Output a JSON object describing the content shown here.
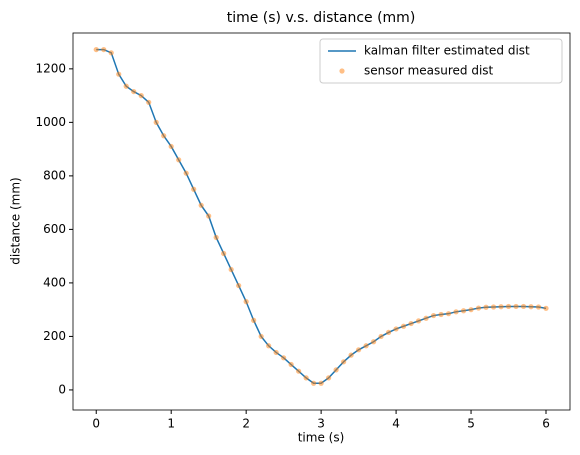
{
  "chart_data": {
    "type": "line_scatter",
    "title": "time (s) v.s. distance (mm)",
    "x_label": "time (s)",
    "y_label": "distance (mm)",
    "x": [
      0,
      0.1,
      0.2,
      0.3,
      0.4,
      0.5,
      0.6,
      0.7,
      0.8,
      0.9,
      1.0,
      1.1,
      1.2,
      1.3,
      1.4,
      1.5,
      1.6,
      1.7,
      1.8,
      1.9,
      2.0,
      2.1,
      2.2,
      2.3,
      2.4,
      2.5,
      2.6,
      2.7,
      2.8,
      2.9,
      3.0,
      3.1,
      3.2,
      3.3,
      3.4,
      3.5,
      3.6,
      3.7,
      3.8,
      3.9,
      4.0,
      4.1,
      4.2,
      4.3,
      4.4,
      4.5,
      4.6,
      4.7,
      4.8,
      4.9,
      5.0,
      5.1,
      5.2,
      5.3,
      5.4,
      5.5,
      5.6,
      5.7,
      5.8,
      5.9,
      6.0
    ],
    "series": [
      {
        "name": "kalman filter estimated dist",
        "color": "#1f77b4",
        "style": "line",
        "values": [
          1272,
          1272,
          1260,
          1180,
          1135,
          1115,
          1100,
          1075,
          1000,
          950,
          910,
          860,
          810,
          750,
          690,
          650,
          570,
          510,
          450,
          390,
          330,
          260,
          200,
          165,
          140,
          120,
          95,
          70,
          45,
          25,
          25,
          45,
          75,
          105,
          130,
          150,
          165,
          180,
          200,
          215,
          228,
          238,
          248,
          258,
          268,
          278,
          282,
          285,
          292,
          296,
          300,
          306,
          309,
          310,
          311,
          312,
          312,
          312,
          311,
          310,
          305
        ]
      },
      {
        "name": "sensor measured dist",
        "color": "#ff7f0e",
        "style": "scatter",
        "values": [
          1272,
          1272,
          1260,
          1180,
          1135,
          1115,
          1100,
          1075,
          1000,
          950,
          910,
          860,
          810,
          750,
          690,
          650,
          570,
          510,
          450,
          390,
          330,
          260,
          200,
          165,
          140,
          120,
          95,
          70,
          45,
          25,
          25,
          45,
          75,
          105,
          130,
          150,
          165,
          180,
          200,
          215,
          228,
          238,
          248,
          258,
          268,
          278,
          282,
          285,
          292,
          296,
          300,
          306,
          309,
          310,
          311,
          312,
          312,
          312,
          311,
          310,
          305
        ]
      }
    ],
    "xlim": [
      -0.31,
      6.32
    ],
    "ylim": [
      -75,
      1334
    ],
    "xticks": [
      0,
      1,
      2,
      3,
      4,
      5,
      6
    ],
    "yticks": [
      0,
      200,
      400,
      600,
      800,
      1000,
      1200
    ],
    "legend": "upper right"
  }
}
